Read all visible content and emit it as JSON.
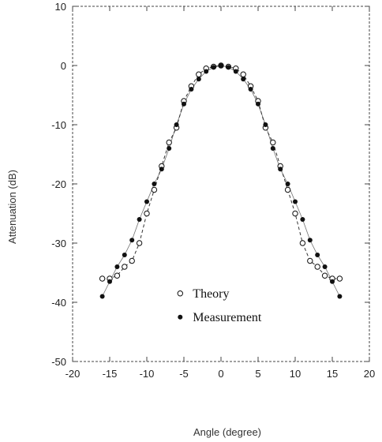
{
  "chart_data": {
    "type": "scatter",
    "title": "",
    "xlabel": "Angle (degree)",
    "ylabel": "Attenuation (dB)",
    "xlim": [
      -20,
      20
    ],
    "ylim": [
      -50,
      10
    ],
    "xticks": [
      -20,
      -15,
      -10,
      -5,
      0,
      5,
      10,
      15,
      20
    ],
    "xtick_labels": [
      "-20",
      "-15",
      "-10",
      "-5",
      "0",
      "5",
      "10",
      "15",
      "20"
    ],
    "yticks": [
      10,
      0,
      -10,
      -20,
      -30,
      -40,
      -50
    ],
    "ytick_labels": [
      "10",
      "0",
      "-10",
      "-20",
      "-30",
      "-40",
      "-50"
    ],
    "grid": false,
    "legend_position": "lower-center",
    "series": [
      {
        "name": "Theory",
        "marker": "open-circle",
        "x": [
          -16,
          -15,
          -14,
          -13,
          -12,
          -11,
          -10,
          -9,
          -8,
          -7,
          -6,
          -5,
          -4,
          -3,
          -2,
          -1,
          0,
          1,
          2,
          3,
          4,
          5,
          6,
          7,
          8,
          9,
          10,
          11,
          12,
          13,
          14,
          15,
          16
        ],
        "y": [
          -36,
          -36,
          -35.5,
          -34,
          -33,
          -30,
          -25,
          -21,
          -17,
          -13,
          -10.5,
          -6,
          -3.5,
          -1.5,
          -0.5,
          -0.2,
          0,
          -0.2,
          -0.5,
          -1.5,
          -3.5,
          -6,
          -10.5,
          -13,
          -17,
          -21,
          -25,
          -30,
          -33,
          -34,
          -35.5,
          -36,
          -36
        ]
      },
      {
        "name": "Measurement",
        "marker": "filled-circle",
        "x": [
          -16,
          -15,
          -14,
          -13,
          -12,
          -11,
          -10,
          -9,
          -8,
          -7,
          -6,
          -5,
          -4,
          -3,
          -2,
          -1,
          0,
          1,
          2,
          3,
          4,
          5,
          6,
          7,
          8,
          9,
          10,
          11,
          12,
          13,
          14,
          15,
          16
        ],
        "y": [
          -39,
          -36.5,
          -34,
          -32,
          -29.5,
          -26,
          -23,
          -20,
          -17.5,
          -14,
          -10,
          -6.5,
          -4,
          -2.3,
          -1,
          -0.3,
          0,
          -0.3,
          -1,
          -2.3,
          -4,
          -6.5,
          -10,
          -14,
          -17.5,
          -20,
          -23,
          -26,
          -29.5,
          -32,
          -34,
          -36.5,
          -39
        ]
      }
    ]
  },
  "colors": {
    "axis": "#444444",
    "marker": "#111111",
    "line": "#333333"
  }
}
